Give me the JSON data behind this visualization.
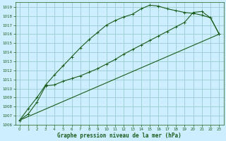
{
  "xlabel": "Graphe pression niveau de la mer (hPa)",
  "background_color": "#cceeff",
  "grid_color": "#99cccc",
  "line_color": "#1a5c1a",
  "xlim": [
    -0.5,
    23.5
  ],
  "ylim": [
    1006,
    1019.5
  ],
  "xticks": [
    0,
    1,
    2,
    3,
    4,
    5,
    6,
    7,
    8,
    9,
    10,
    11,
    12,
    13,
    14,
    15,
    16,
    17,
    18,
    19,
    20,
    21,
    22,
    23
  ],
  "yticks": [
    1006,
    1007,
    1008,
    1009,
    1010,
    1011,
    1012,
    1013,
    1014,
    1015,
    1016,
    1017,
    1018,
    1019
  ],
  "series": [
    {
      "x": [
        0,
        1,
        2,
        3,
        4,
        5,
        6,
        7,
        8,
        9,
        10,
        11,
        12,
        13,
        14,
        15,
        16,
        17,
        18,
        19,
        20,
        21,
        22,
        23
      ],
      "y": [
        1006.5,
        1007.8,
        1009.0,
        1010.4,
        1011.5,
        1012.5,
        1013.5,
        1014.5,
        1015.4,
        1016.2,
        1017.0,
        1017.5,
        1017.9,
        1018.2,
        1018.8,
        1019.2,
        1019.1,
        1018.8,
        1018.6,
        1018.4,
        1018.3,
        1018.1,
        1017.8,
        1016.0
      ],
      "marker": "+"
    },
    {
      "x": [
        0,
        1,
        2,
        3,
        4,
        5,
        6,
        7,
        8,
        9,
        10,
        11,
        12,
        13,
        14,
        15,
        16,
        17,
        18,
        19,
        20,
        21,
        22,
        23
      ],
      "y": [
        1006.5,
        1007.2,
        1008.5,
        1010.3,
        1010.4,
        1010.8,
        1011.1,
        1011.4,
        1011.8,
        1012.2,
        1012.7,
        1013.2,
        1013.8,
        1014.3,
        1014.8,
        1015.3,
        1015.8,
        1016.3,
        1016.8,
        1017.3,
        1018.4,
        1018.5,
        1017.8,
        1016.0
      ],
      "marker": "+"
    },
    {
      "x": [
        0,
        23
      ],
      "y": [
        1006.5,
        1016.0
      ],
      "marker": null
    }
  ]
}
